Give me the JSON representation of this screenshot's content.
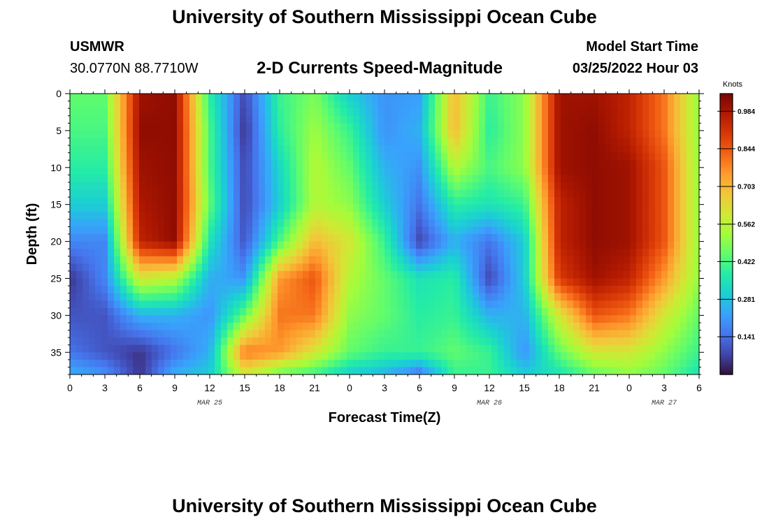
{
  "page": {
    "title_top": "University of Southern Mississippi Ocean Cube",
    "title_bottom": "University of Southern Mississippi Ocean Cube"
  },
  "station": {
    "id": "USMWR",
    "coords": "30.0770N  88.7710W"
  },
  "model": {
    "label": "Model Start Time",
    "start": "03/25/2022 Hour 03"
  },
  "chart_data": {
    "type": "heatmap",
    "title": "2-D Currents Speed-Magnitude",
    "xlabel": "Forecast Time(Z)",
    "ylabel": "Depth (ft)",
    "x_hours": [
      0,
      3,
      6,
      9,
      12,
      15,
      18,
      21,
      24,
      27,
      30,
      33,
      36,
      39,
      42,
      45,
      48,
      51,
      54
    ],
    "x_tick_labels": [
      "0",
      "3",
      "6",
      "9",
      "12",
      "15",
      "18",
      "21",
      "0",
      "3",
      "6",
      "9",
      "12",
      "15",
      "18",
      "21",
      "0",
      "3",
      "6"
    ],
    "date_labels": [
      {
        "text": "MAR 25",
        "hour": 12
      },
      {
        "text": "MAR 26",
        "hour": 36
      },
      {
        "text": "MAR 27",
        "hour": 51
      }
    ],
    "y_ticks": [
      0,
      5,
      10,
      15,
      20,
      25,
      30,
      35
    ],
    "ylim": [
      0,
      38
    ],
    "y_inverted": true,
    "colorbar": {
      "label": "Knots",
      "ticks": [
        0.141,
        0.281,
        0.422,
        0.562,
        0.703,
        0.844,
        0.984
      ],
      "range": [
        0.0,
        1.05
      ],
      "colors": [
        "#30123b",
        "#4145ab",
        "#4675ed",
        "#39a2fc",
        "#1bcfd4",
        "#24eca6",
        "#61fc6c",
        "#a4fc3b",
        "#d1e834",
        "#f3c63a",
        "#fe9b2d",
        "#f36315",
        "#d93806",
        "#b11901",
        "#7a0402"
      ]
    },
    "grid_hours": [
      0,
      3,
      6,
      9,
      12,
      15,
      18,
      21,
      24,
      27,
      30,
      33,
      36,
      39,
      42,
      45,
      48,
      51,
      54
    ],
    "grid_depths": [
      0,
      5,
      10,
      15,
      20,
      25,
      30,
      35,
      38
    ],
    "speed_knots": [
      [
        0.45,
        0.45,
        1.0,
        1.02,
        0.38,
        0.08,
        0.4,
        0.48,
        0.3,
        0.2,
        0.22,
        0.7,
        0.4,
        0.5,
        1.0,
        1.0,
        0.95,
        0.8,
        0.5
      ],
      [
        0.42,
        0.42,
        1.02,
        1.02,
        0.42,
        0.05,
        0.38,
        0.52,
        0.4,
        0.2,
        0.25,
        0.7,
        0.38,
        0.5,
        1.0,
        1.02,
        0.95,
        0.8,
        0.5
      ],
      [
        0.38,
        0.38,
        1.0,
        1.02,
        0.42,
        0.08,
        0.32,
        0.55,
        0.45,
        0.25,
        0.2,
        0.55,
        0.42,
        0.5,
        1.0,
        1.02,
        1.0,
        0.85,
        0.5
      ],
      [
        0.3,
        0.3,
        0.98,
        1.02,
        0.45,
        0.08,
        0.3,
        0.55,
        0.5,
        0.3,
        0.15,
        0.38,
        0.35,
        0.4,
        0.95,
        1.02,
        1.0,
        0.85,
        0.5
      ],
      [
        0.18,
        0.18,
        0.95,
        1.02,
        0.35,
        0.1,
        0.42,
        0.7,
        0.6,
        0.4,
        0.08,
        0.25,
        0.15,
        0.3,
        0.95,
        1.02,
        1.0,
        0.85,
        0.5
      ],
      [
        0.05,
        0.18,
        0.6,
        0.55,
        0.25,
        0.2,
        0.75,
        0.85,
        0.55,
        0.45,
        0.35,
        0.38,
        0.08,
        0.3,
        0.9,
        1.0,
        0.95,
        0.75,
        0.5
      ],
      [
        0.1,
        0.1,
        0.25,
        0.25,
        0.2,
        0.45,
        0.8,
        0.8,
        0.5,
        0.45,
        0.38,
        0.4,
        0.25,
        0.25,
        0.6,
        0.85,
        0.8,
        0.6,
        0.45
      ],
      [
        0.15,
        0.1,
        0.05,
        0.15,
        0.25,
        0.8,
        0.75,
        0.6,
        0.45,
        0.4,
        0.4,
        0.45,
        0.4,
        0.2,
        0.45,
        0.6,
        0.6,
        0.5,
        0.4
      ],
      [
        0.25,
        0.2,
        0.05,
        0.25,
        0.3,
        0.6,
        0.45,
        0.4,
        0.3,
        0.25,
        0.15,
        0.4,
        0.4,
        0.3,
        0.35,
        0.45,
        0.5,
        0.45,
        0.35
      ]
    ]
  }
}
